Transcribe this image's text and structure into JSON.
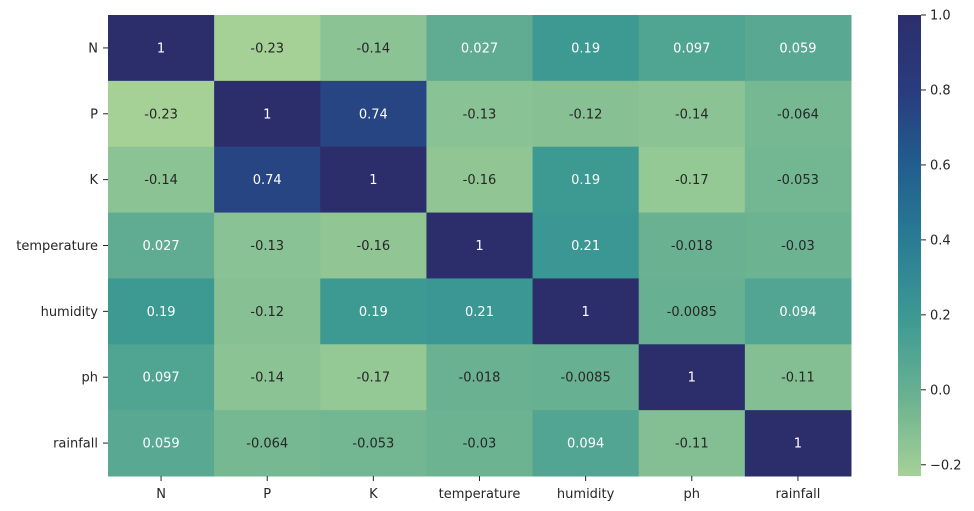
{
  "chart_data": {
    "type": "heatmap",
    "title": "",
    "xlabel": "",
    "ylabel": "",
    "x": [
      "N",
      "P",
      "K",
      "temperature",
      "humidity",
      "ph",
      "rainfall"
    ],
    "y": [
      "N",
      "P",
      "K",
      "temperature",
      "humidity",
      "ph",
      "rainfall"
    ],
    "values": [
      [
        1,
        -0.23,
        -0.14,
        0.027,
        0.19,
        0.097,
        0.059
      ],
      [
        -0.23,
        1,
        0.74,
        -0.13,
        -0.12,
        -0.14,
        -0.064
      ],
      [
        -0.14,
        0.74,
        1,
        -0.16,
        0.19,
        -0.17,
        -0.053
      ],
      [
        0.027,
        -0.13,
        -0.16,
        1,
        0.21,
        -0.018,
        -0.03
      ],
      [
        0.19,
        -0.12,
        0.19,
        0.21,
        1,
        -0.0085,
        0.094
      ],
      [
        0.097,
        -0.14,
        -0.17,
        -0.018,
        -0.0085,
        1,
        -0.11
      ],
      [
        0.059,
        -0.064,
        -0.053,
        -0.03,
        0.094,
        -0.11,
        1
      ]
    ],
    "labels": [
      [
        "1",
        "-0.23",
        "-0.14",
        "0.027",
        "0.19",
        "0.097",
        "0.059"
      ],
      [
        "-0.23",
        "1",
        "0.74",
        "-0.13",
        "-0.12",
        "-0.14",
        "-0.064"
      ],
      [
        "-0.14",
        "0.74",
        "1",
        "-0.16",
        "0.19",
        "-0.17",
        "-0.053"
      ],
      [
        "0.027",
        "-0.13",
        "-0.16",
        "1",
        "0.21",
        "-0.018",
        "-0.03"
      ],
      [
        "0.19",
        "-0.12",
        "0.19",
        "0.21",
        "1",
        "-0.0085",
        "0.094"
      ],
      [
        "0.097",
        "-0.14",
        "-0.17",
        "-0.018",
        "-0.0085",
        "1",
        "-0.11"
      ],
      [
        "0.059",
        "-0.064",
        "-0.053",
        "-0.03",
        "0.094",
        "-0.11",
        "1"
      ]
    ],
    "colorbar": {
      "range": [
        -0.23,
        1
      ],
      "ticks": [
        1.0,
        0.8,
        0.6,
        0.4,
        0.2,
        0.0,
        -0.2
      ],
      "tick_labels": [
        "1.0",
        "0.8",
        "0.6",
        "0.4",
        "0.2",
        "0.0",
        "−0.2"
      ],
      "colormap": [
        "#a5d196",
        "#6bb291",
        "#3e9b93",
        "#2a7e94",
        "#215f8f",
        "#293c7e",
        "#2c2e6c"
      ]
    },
    "label_color_dark": "#262626",
    "label_color_light": "#ffffff",
    "grid": false
  }
}
